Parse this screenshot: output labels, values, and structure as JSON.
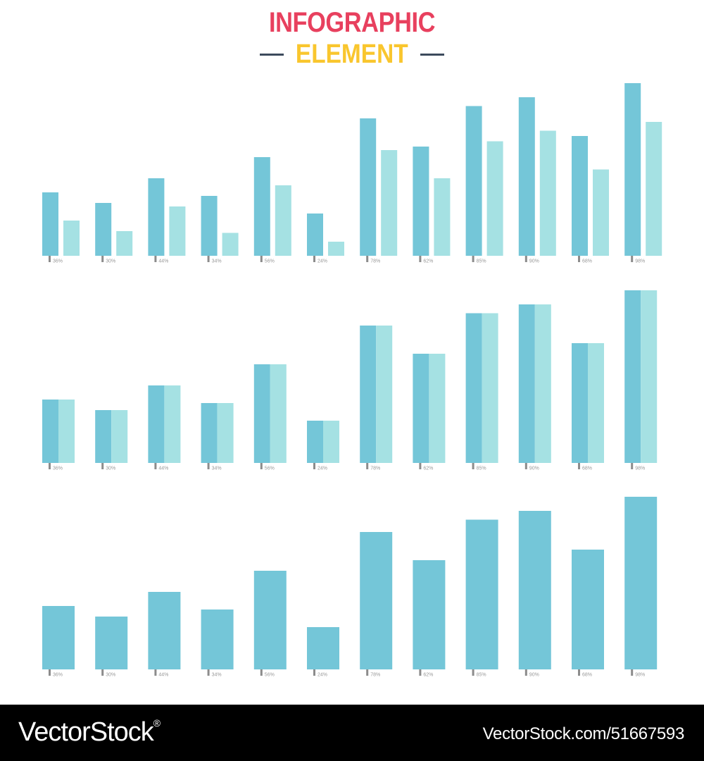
{
  "header": {
    "title": "INFOGRAPHIC",
    "subtitle": "ELEMENT",
    "title_color": "#e8405e",
    "subtitle_color": "#f9c62e",
    "dash_color": "#3c4a5c"
  },
  "colors": {
    "primary_bar": "#74c6d8",
    "secondary_bar": "#a5e1e3",
    "tick": "#8c8c8c",
    "label": "#999999"
  },
  "chart_data": [
    {
      "type": "bar",
      "layout": "grouped",
      "categories": [
        "36%",
        "30%",
        "44%",
        "34%",
        "56%",
        "24%",
        "78%",
        "62%",
        "85%",
        "90%",
        "68%",
        "98%"
      ],
      "series": [
        {
          "values": [
            36,
            30,
            44,
            34,
            56,
            24,
            78,
            62,
            85,
            90,
            68,
            98
          ]
        },
        {
          "values": [
            20,
            14,
            28,
            13,
            40,
            8,
            60,
            44,
            65,
            71,
            49,
            76
          ]
        }
      ],
      "ylim": [
        0,
        100
      ]
    },
    {
      "type": "bar",
      "layout": "split",
      "categories": [
        "36%",
        "30%",
        "44%",
        "34%",
        "56%",
        "24%",
        "78%",
        "62%",
        "85%",
        "90%",
        "68%",
        "98%"
      ],
      "series": [
        {
          "values": [
            36,
            30,
            44,
            34,
            56,
            24,
            78,
            62,
            85,
            90,
            68,
            98
          ]
        }
      ],
      "ylim": [
        0,
        100
      ]
    },
    {
      "type": "bar",
      "layout": "single",
      "categories": [
        "36%",
        "30%",
        "44%",
        "34%",
        "56%",
        "24%",
        "78%",
        "62%",
        "85%",
        "90%",
        "68%",
        "98%"
      ],
      "series": [
        {
          "values": [
            36,
            30,
            44,
            34,
            56,
            24,
            78,
            62,
            85,
            90,
            68,
            98
          ]
        }
      ],
      "ylim": [
        0,
        100
      ]
    }
  ],
  "footer": {
    "brand": "VectorStock",
    "brand_mark": "®",
    "stock_id": "VectorStock.com/51667593"
  }
}
